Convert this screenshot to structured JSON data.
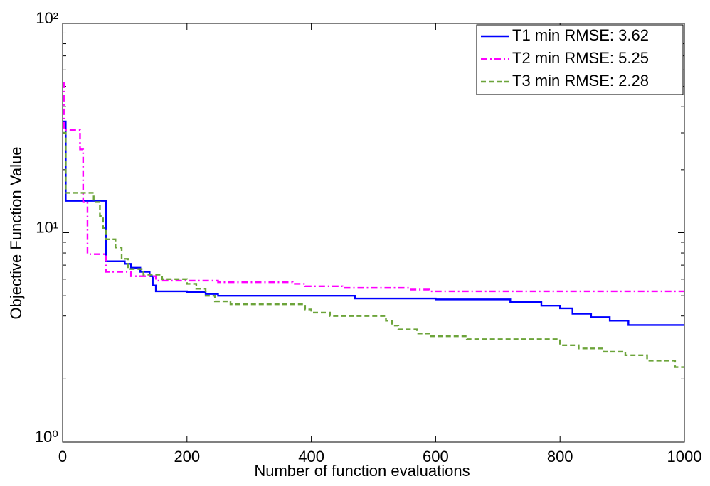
{
  "chart_data": {
    "type": "line",
    "xlabel": "Number of function evaluations",
    "ylabel": "Objective Function Value",
    "xlim": [
      0,
      1000
    ],
    "xticks": [
      0,
      200,
      400,
      600,
      800,
      1000
    ],
    "ylim": [
      1,
      100
    ],
    "yscale": "log",
    "yticks": [
      {
        "value": 1,
        "label": "10⁰"
      },
      {
        "value": 10,
        "label": "10¹"
      },
      {
        "value": 100,
        "label": "10²"
      }
    ],
    "yminorticks": [
      2,
      3,
      4,
      5,
      6,
      7,
      8,
      9,
      20,
      30,
      40,
      50,
      60,
      70,
      80,
      90
    ],
    "legend": "upper right",
    "series": [
      {
        "name": "T1 min RMSE: 3.62",
        "color": "#0000ff",
        "linestyle": "solid",
        "x": [
          0,
          5,
          5,
          70,
          70,
          100,
          100,
          110,
          110,
          125,
          125,
          140,
          140,
          145,
          145,
          150,
          150,
          200,
          200,
          230,
          230,
          250,
          250,
          470,
          470,
          600,
          600,
          720,
          720,
          770,
          770,
          800,
          800,
          820,
          820,
          850,
          850,
          880,
          880,
          910,
          910,
          1000
        ],
        "values": [
          34,
          34,
          14.2,
          14.2,
          7.3,
          7.3,
          7.1,
          7.1,
          6.8,
          6.8,
          6.5,
          6.5,
          6.2,
          6.2,
          5.6,
          5.6,
          5.25,
          5.25,
          5.2,
          5.2,
          5.1,
          5.1,
          5.0,
          5.0,
          4.85,
          4.85,
          4.8,
          4.8,
          4.66,
          4.66,
          4.48,
          4.48,
          4.35,
          4.35,
          4.1,
          4.1,
          3.95,
          3.95,
          3.8,
          3.8,
          3.62,
          3.62
        ]
      },
      {
        "name": "T2 min RMSE: 5.25",
        "color": "#ff00ff",
        "linestyle": "dashdot",
        "x": [
          0,
          2,
          2,
          28,
          28,
          33,
          33,
          40,
          40,
          70,
          70,
          110,
          110,
          150,
          150,
          250,
          250,
          370,
          370,
          390,
          390,
          450,
          450,
          560,
          560,
          590,
          590,
          1000
        ],
        "values": [
          52,
          52,
          31,
          31,
          25,
          25,
          14,
          14,
          7.9,
          7.9,
          6.5,
          6.5,
          6.2,
          6.2,
          5.9,
          5.9,
          5.8,
          5.8,
          5.7,
          5.7,
          5.55,
          5.55,
          5.45,
          5.45,
          5.35,
          5.35,
          5.25,
          5.25
        ]
      },
      {
        "name": "T3 min RMSE: 2.28",
        "color": "#6ca43a",
        "linestyle": "dashed",
        "x": [
          0,
          5,
          5,
          50,
          50,
          60,
          60,
          65,
          65,
          70,
          70,
          85,
          85,
          95,
          95,
          105,
          105,
          130,
          130,
          160,
          160,
          200,
          200,
          215,
          215,
          230,
          230,
          245,
          245,
          270,
          270,
          390,
          390,
          400,
          400,
          430,
          430,
          520,
          520,
          530,
          530,
          540,
          540,
          570,
          570,
          590,
          590,
          650,
          650,
          800,
          800,
          830,
          830,
          870,
          870,
          905,
          905,
          940,
          940,
          985,
          985,
          1000
        ],
        "values": [
          30,
          30,
          15.5,
          15.5,
          14,
          14,
          12,
          12,
          10.5,
          10.5,
          9.3,
          9.3,
          8.5,
          8.5,
          7.5,
          7.5,
          6.7,
          6.7,
          6.3,
          6.3,
          6.0,
          6.0,
          5.7,
          5.7,
          5.4,
          5.4,
          5.0,
          5.0,
          4.7,
          4.7,
          4.55,
          4.55,
          4.3,
          4.3,
          4.15,
          4.15,
          4.0,
          4.0,
          3.8,
          3.8,
          3.6,
          3.6,
          3.45,
          3.45,
          3.3,
          3.3,
          3.2,
          3.2,
          3.1,
          3.1,
          2.9,
          2.9,
          2.8,
          2.8,
          2.7,
          2.7,
          2.6,
          2.6,
          2.45,
          2.45,
          2.28,
          2.28
        ]
      }
    ]
  }
}
